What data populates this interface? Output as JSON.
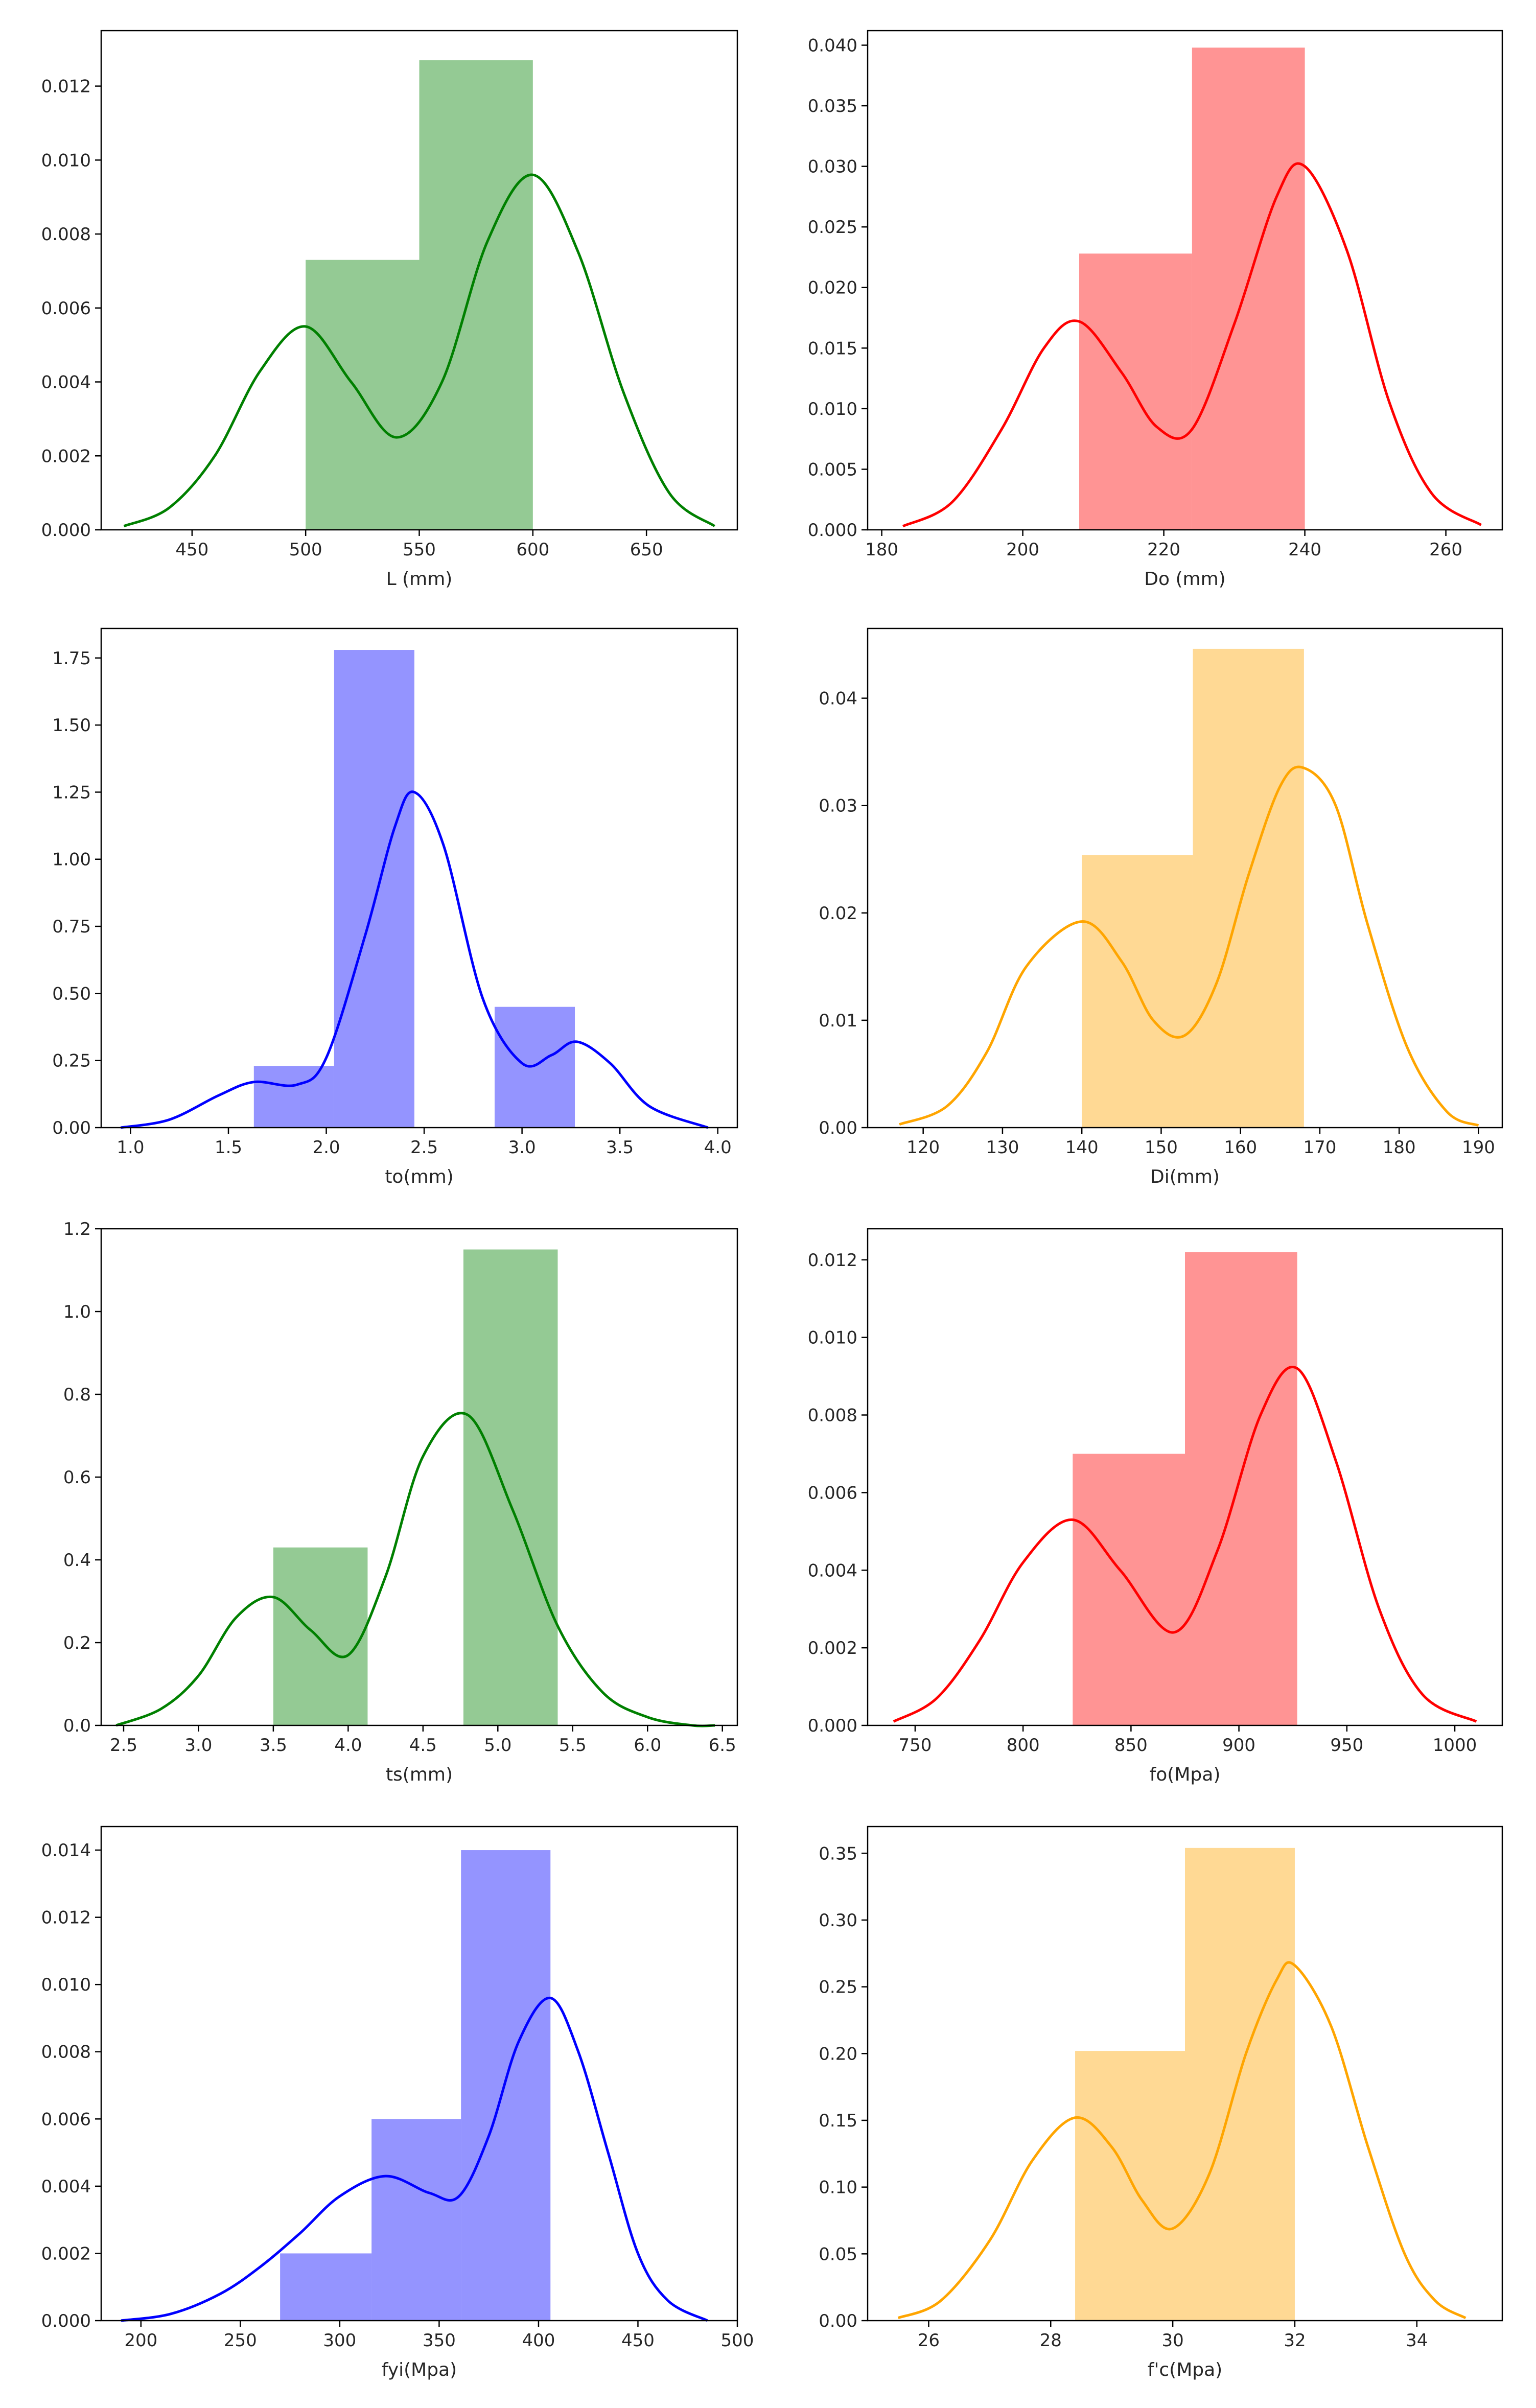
{
  "chart_data": [
    {
      "type": "bar",
      "subtype": "histogram+kde",
      "color": "#008000",
      "xlabel": "L (mm)",
      "xlim": [
        410,
        690
      ],
      "ylim": [
        0,
        0.0135
      ],
      "xticks": [
        450,
        500,
        550,
        600,
        650
      ],
      "yticks": [
        0.0,
        0.002,
        0.004,
        0.006,
        0.008,
        0.01,
        0.012
      ],
      "ytick_decimals": 3,
      "xtick_decimals": 0,
      "bins": [
        {
          "x0": 500,
          "x1": 550,
          "value": 0.0073
        },
        {
          "x0": 550,
          "x1": 600,
          "value": 0.0127
        }
      ],
      "kde": {
        "x": [
          420,
          440,
          460,
          480,
          500,
          520,
          540,
          560,
          580,
          600,
          620,
          640,
          660,
          680
        ],
        "y": [
          0.0001,
          0.0006,
          0.002,
          0.0043,
          0.0055,
          0.004,
          0.0025,
          0.004,
          0.0078,
          0.0096,
          0.0075,
          0.0037,
          0.001,
          0.0001
        ]
      }
    },
    {
      "type": "bar",
      "subtype": "histogram+kde",
      "color": "#ff0000",
      "xlabel": "Do (mm)",
      "xlim": [
        178,
        268
      ],
      "ylim": [
        0,
        0.0412
      ],
      "xticks": [
        180,
        200,
        220,
        240,
        260
      ],
      "yticks": [
        0.0,
        0.005,
        0.01,
        0.015,
        0.02,
        0.025,
        0.03,
        0.035,
        0.04
      ],
      "ytick_decimals": 3,
      "xtick_decimals": 0,
      "bins": [
        {
          "x0": 208,
          "x1": 224,
          "value": 0.0228
        },
        {
          "x0": 224,
          "x1": 240,
          "value": 0.0398
        }
      ],
      "kde": {
        "x": [
          183,
          190,
          197,
          203,
          208,
          214,
          219,
          224,
          230,
          236,
          240,
          246,
          252,
          258,
          265
        ],
        "y": [
          0.0003,
          0.0023,
          0.0083,
          0.015,
          0.0172,
          0.013,
          0.0085,
          0.0083,
          0.017,
          0.0275,
          0.03,
          0.023,
          0.0105,
          0.003,
          0.0004
        ]
      }
    },
    {
      "type": "bar",
      "subtype": "histogram+kde",
      "color": "#0000ff",
      "xlabel": "to(mm)",
      "xlim": [
        0.85,
        4.1
      ],
      "ylim": [
        0,
        1.86
      ],
      "xticks": [
        1.0,
        1.5,
        2.0,
        2.5,
        3.0,
        3.5,
        4.0
      ],
      "yticks": [
        0.0,
        0.25,
        0.5,
        0.75,
        1.0,
        1.25,
        1.5,
        1.75
      ],
      "ytick_decimals": 2,
      "xtick_decimals": 1,
      "bins": [
        {
          "x0": 1.63,
          "x1": 2.04,
          "value": 0.23
        },
        {
          "x0": 2.04,
          "x1": 2.45,
          "value": 1.78
        },
        {
          "x0": 2.45,
          "x1": 2.86,
          "value": 0.0
        },
        {
          "x0": 2.86,
          "x1": 3.27,
          "value": 0.45
        }
      ],
      "kde": {
        "x": [
          0.95,
          1.2,
          1.45,
          1.63,
          1.85,
          2.0,
          2.2,
          2.35,
          2.45,
          2.6,
          2.8,
          3.0,
          3.15,
          3.28,
          3.45,
          3.65,
          3.95
        ],
        "y": [
          0.0,
          0.03,
          0.12,
          0.17,
          0.16,
          0.26,
          0.72,
          1.12,
          1.25,
          1.05,
          0.48,
          0.24,
          0.27,
          0.32,
          0.24,
          0.08,
          0.0
        ]
      }
    },
    {
      "type": "bar",
      "subtype": "histogram+kde",
      "color": "#ffa500",
      "xlabel": "Di(mm)",
      "xlim": [
        113,
        193
      ],
      "ylim": [
        0,
        0.0465
      ],
      "xticks": [
        120,
        130,
        140,
        150,
        160,
        170,
        180,
        190
      ],
      "yticks": [
        0.0,
        0.01,
        0.02,
        0.03,
        0.04
      ],
      "ytick_decimals": 2,
      "xtick_decimals": 0,
      "bins": [
        {
          "x0": 140,
          "x1": 154,
          "value": 0.0254
        },
        {
          "x0": 154,
          "x1": 168,
          "value": 0.0446
        }
      ],
      "kde": {
        "x": [
          117,
          123,
          128,
          133,
          140,
          145,
          149,
          153,
          157,
          161,
          165,
          168,
          172,
          176,
          181,
          186,
          190
        ],
        "y": [
          0.0003,
          0.002,
          0.007,
          0.015,
          0.0192,
          0.0155,
          0.01,
          0.0086,
          0.0135,
          0.0235,
          0.0318,
          0.0335,
          0.03,
          0.019,
          0.0075,
          0.0015,
          0.0002
        ]
      }
    },
    {
      "type": "bar",
      "subtype": "histogram+kde",
      "color": "#008000",
      "xlabel": "ts(mm)",
      "xlim": [
        2.35,
        6.6
      ],
      "ylim": [
        0,
        1.2
      ],
      "xticks": [
        2.5,
        3.0,
        3.5,
        4.0,
        4.5,
        5.0,
        5.5,
        6.0,
        6.5
      ],
      "yticks": [
        0.0,
        0.2,
        0.4,
        0.6,
        0.8,
        1.0,
        1.2
      ],
      "ytick_decimals": 1,
      "xtick_decimals": 1,
      "bins": [
        {
          "x0": 3.5,
          "x1": 4.13,
          "value": 0.43
        },
        {
          "x0": 4.13,
          "x1": 4.77,
          "value": 0.0
        },
        {
          "x0": 4.77,
          "x1": 5.4,
          "value": 1.15
        }
      ],
      "kde": {
        "x": [
          2.45,
          2.75,
          3.0,
          3.25,
          3.5,
          3.75,
          4.0,
          4.25,
          4.5,
          4.8,
          5.1,
          5.4,
          5.7,
          6.0,
          6.3,
          6.45
        ],
        "y": [
          0.0,
          0.04,
          0.12,
          0.26,
          0.31,
          0.23,
          0.17,
          0.36,
          0.65,
          0.75,
          0.52,
          0.24,
          0.08,
          0.02,
          0.0,
          0.0
        ]
      }
    },
    {
      "type": "bar",
      "subtype": "histogram+kde",
      "color": "#ff0000",
      "xlabel": "fo(Mpa)",
      "xlim": [
        728,
        1022
      ],
      "ylim": [
        0,
        0.0128
      ],
      "xticks": [
        750,
        800,
        850,
        900,
        950,
        1000
      ],
      "yticks": [
        0.0,
        0.002,
        0.004,
        0.006,
        0.008,
        0.01,
        0.012
      ],
      "ytick_decimals": 3,
      "xtick_decimals": 0,
      "bins": [
        {
          "x0": 823,
          "x1": 875,
          "value": 0.007
        },
        {
          "x0": 875,
          "x1": 927,
          "value": 0.0122
        }
      ],
      "kde": {
        "x": [
          740,
          760,
          780,
          800,
          823,
          845,
          870,
          890,
          910,
          927,
          945,
          965,
          985,
          1010
        ],
        "y": [
          0.0001,
          0.0007,
          0.0022,
          0.0042,
          0.0053,
          0.004,
          0.0024,
          0.0045,
          0.008,
          0.0092,
          0.0068,
          0.003,
          0.0008,
          0.0001
        ]
      }
    },
    {
      "type": "bar",
      "subtype": "histogram+kde",
      "color": "#0000ff",
      "xlabel": "fyi(Mpa)",
      "xlim": [
        180,
        500
      ],
      "ylim": [
        0,
        0.0147
      ],
      "xticks": [
        200,
        250,
        300,
        350,
        400,
        450,
        500
      ],
      "yticks": [
        0.0,
        0.002,
        0.004,
        0.006,
        0.008,
        0.01,
        0.012,
        0.014
      ],
      "ytick_decimals": 3,
      "xtick_decimals": 0,
      "bins": [
        {
          "x0": 270,
          "x1": 316,
          "value": 0.002
        },
        {
          "x0": 316,
          "x1": 361,
          "value": 0.006
        },
        {
          "x0": 361,
          "x1": 406,
          "value": 0.014
        }
      ],
      "kde": {
        "x": [
          190,
          215,
          240,
          260,
          280,
          300,
          323,
          345,
          360,
          375,
          390,
          406,
          420,
          435,
          450,
          465,
          485
        ],
        "y": [
          0.0,
          0.0002,
          0.0008,
          0.0016,
          0.0026,
          0.0037,
          0.0043,
          0.0038,
          0.0037,
          0.0055,
          0.0083,
          0.0096,
          0.008,
          0.005,
          0.002,
          0.0006,
          0.0
        ]
      }
    },
    {
      "type": "bar",
      "subtype": "histogram+kde",
      "color": "#ffa500",
      "xlabel": "f'c(Mpa)",
      "xlim": [
        25.0,
        35.4
      ],
      "ylim": [
        0,
        0.37
      ],
      "xticks": [
        26,
        28,
        30,
        32,
        34
      ],
      "yticks": [
        0.0,
        0.05,
        0.1,
        0.15,
        0.2,
        0.25,
        0.3,
        0.35
      ],
      "ytick_decimals": 2,
      "xtick_decimals": 0,
      "bins": [
        {
          "x0": 28.4,
          "x1": 30.2,
          "value": 0.202
        },
        {
          "x0": 30.2,
          "x1": 32.0,
          "value": 0.354
        }
      ],
      "kde": {
        "x": [
          25.5,
          26.2,
          27.0,
          27.7,
          28.4,
          29.0,
          29.5,
          30.0,
          30.6,
          31.2,
          31.7,
          32.0,
          32.6,
          33.2,
          33.8,
          34.3,
          34.8
        ],
        "y": [
          0.002,
          0.015,
          0.06,
          0.12,
          0.152,
          0.13,
          0.09,
          0.069,
          0.11,
          0.2,
          0.255,
          0.266,
          0.22,
          0.13,
          0.05,
          0.015,
          0.002
        ]
      }
    }
  ]
}
